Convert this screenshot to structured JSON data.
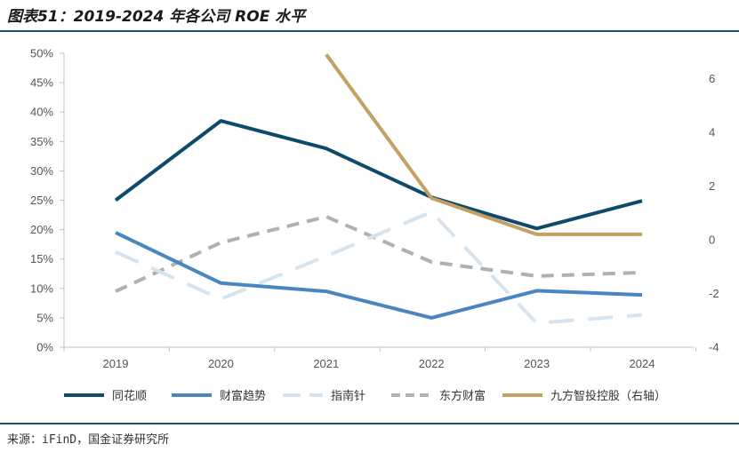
{
  "title": "图表51：2019-2024 年各公司 ROE 水平",
  "source": "来源：iFinD，国金证券研究所",
  "chart_data": {
    "type": "line",
    "categories": [
      "2019",
      "2020",
      "2021",
      "2022",
      "2023",
      "2024"
    ],
    "y_left": {
      "ticks": [
        "0%",
        "5%",
        "10%",
        "15%",
        "20%",
        "25%",
        "30%",
        "35%",
        "40%",
        "45%",
        "50%"
      ],
      "ylim": [
        0,
        0.5
      ]
    },
    "y_right": {
      "ticks": [
        "-4",
        "-2",
        "0",
        "2",
        "4",
        "6"
      ],
      "ylim": [
        -4,
        7
      ]
    },
    "grid": false,
    "legend_position": "bottom",
    "series": [
      {
        "name": "同花顺",
        "axis": "left",
        "color": "#0d4a6b",
        "dash": "solid",
        "values": [
          0.25,
          0.385,
          0.338,
          0.255,
          0.202,
          0.249
        ]
      },
      {
        "name": "财富趋势",
        "axis": "left",
        "color": "#4a86c0",
        "dash": "solid",
        "values": [
          0.195,
          0.109,
          0.095,
          0.05,
          0.096,
          0.089
        ]
      },
      {
        "name": "指南针",
        "axis": "left",
        "color": "#d6e4f0",
        "dash": "long",
        "values": [
          0.162,
          0.082,
          0.155,
          0.23,
          0.041,
          0.055
        ]
      },
      {
        "name": "东方财富",
        "axis": "left",
        "color": "#b0b0b0",
        "dash": "short",
        "values": [
          0.095,
          0.178,
          0.222,
          0.145,
          0.121,
          0.127
        ]
      },
      {
        "name": "九方智投控股（右轴）",
        "axis": "right",
        "color": "#c4a063",
        "dash": "solid",
        "values": [
          null,
          null,
          6.9,
          1.55,
          0.2,
          0.2
        ]
      }
    ]
  }
}
